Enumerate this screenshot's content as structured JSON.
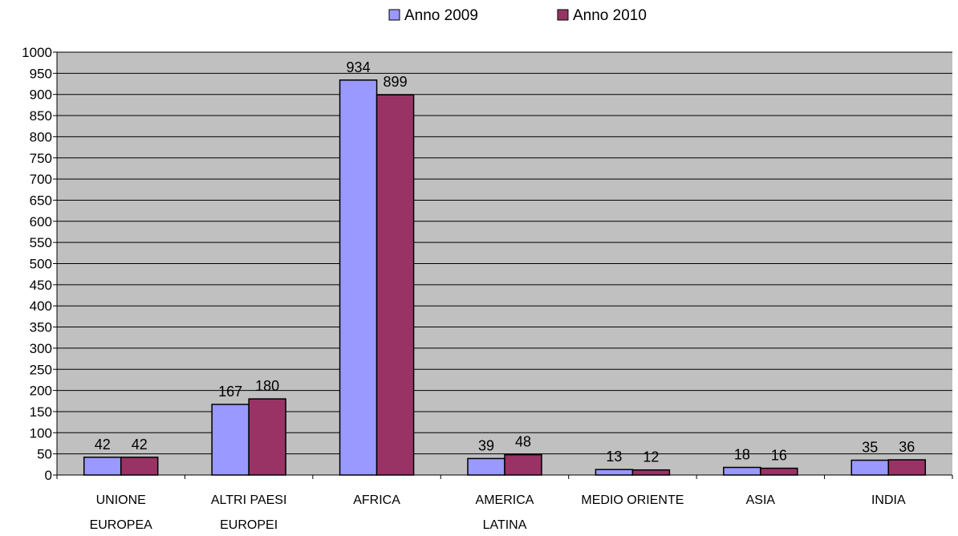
{
  "chart_data": {
    "type": "bar",
    "title": "",
    "xlabel": "",
    "ylabel": "",
    "categories": [
      [
        "UNIONE",
        "EUROPEA"
      ],
      [
        "ALTRI PAESI",
        "EUROPEI"
      ],
      [
        "AFRICA"
      ],
      [
        "AMERICA",
        "LATINA"
      ],
      [
        "MEDIO ORIENTE"
      ],
      [
        "ASIA"
      ],
      [
        "INDIA"
      ]
    ],
    "series": [
      {
        "name": "Anno 2009",
        "color": "#9999ff",
        "values": [
          42,
          167,
          934,
          39,
          13,
          18,
          35
        ]
      },
      {
        "name": "Anno 2010",
        "color": "#993366",
        "values": [
          42,
          180,
          899,
          48,
          12,
          16,
          36
        ]
      }
    ],
    "ylim": [
      0,
      1000
    ],
    "ytick_step": 50,
    "grid": true,
    "plot_background": "#c0c0c0",
    "legend_position": "top-center"
  }
}
